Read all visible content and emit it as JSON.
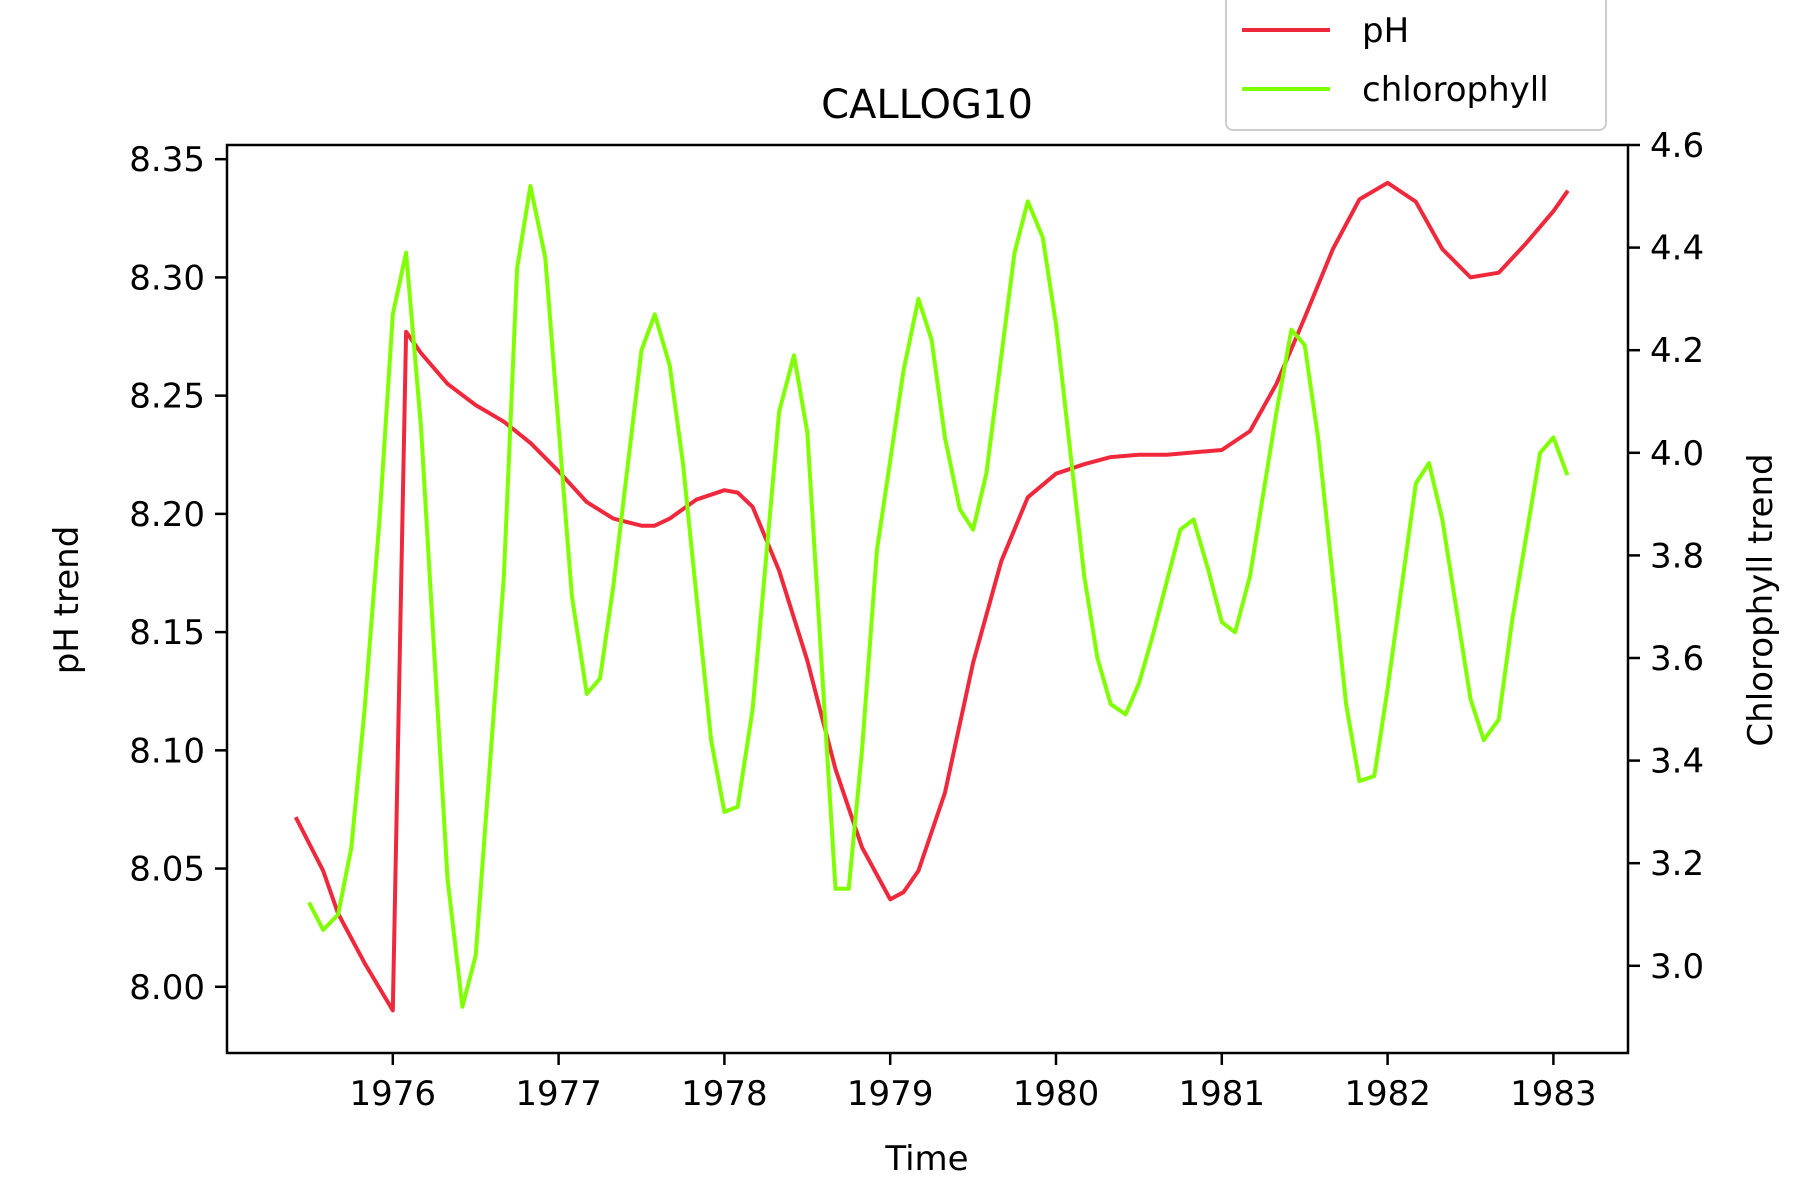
{
  "chart_data": {
    "type": "line",
    "title": "CALLOG10",
    "xlabel": "Time",
    "ylabel_left": "pH trend",
    "ylabel_right": "Chlorophyll trend",
    "xlim": [
      1975.0,
      1983.45
    ],
    "ylim_left": [
      7.972,
      8.356
    ],
    "ylim_right": [
      2.83,
      4.6
    ],
    "x_ticks": [
      1976,
      1977,
      1978,
      1979,
      1980,
      1981,
      1982,
      1983
    ],
    "x_tick_labels": [
      "1976",
      "1977",
      "1978",
      "1979",
      "1980",
      "1981",
      "1982",
      "1983"
    ],
    "y_left_ticks": [
      8.0,
      8.05,
      8.1,
      8.15,
      8.2,
      8.25,
      8.3,
      8.35
    ],
    "y_left_tick_labels": [
      "8.00",
      "8.05",
      "8.10",
      "8.15",
      "8.20",
      "8.25",
      "8.30",
      "8.35"
    ],
    "y_right_ticks": [
      3.0,
      3.2,
      3.4,
      3.6,
      3.8,
      4.0,
      4.2,
      4.4,
      4.6
    ],
    "y_right_tick_labels": [
      "3.0",
      "3.2",
      "3.4",
      "3.6",
      "3.8",
      "4.0",
      "4.2",
      "4.4",
      "4.6"
    ],
    "grid": false,
    "legend_position": "top-right",
    "series": [
      {
        "name": "pH",
        "axis": "left",
        "color": "#f0283c",
        "x": [
          1975.42,
          1975.58,
          1975.67,
          1975.83,
          1976.0,
          1976.08,
          1976.17,
          1976.33,
          1976.5,
          1976.67,
          1976.83,
          1977.0,
          1977.17,
          1977.33,
          1977.5,
          1977.58,
          1977.67,
          1977.83,
          1978.0,
          1978.08,
          1978.17,
          1978.33,
          1978.5,
          1978.67,
          1978.83,
          1979.0,
          1979.08,
          1979.17,
          1979.33,
          1979.5,
          1979.67,
          1979.83,
          1980.0,
          1980.17,
          1980.33,
          1980.5,
          1980.67,
          1980.83,
          1981.0,
          1981.17,
          1981.33,
          1981.5,
          1981.67,
          1981.83,
          1982.0,
          1982.17,
          1982.33,
          1982.5,
          1982.67,
          1982.83,
          1983.0,
          1983.08
        ],
        "y": [
          8.071,
          8.049,
          8.031,
          8.01,
          7.99,
          8.277,
          8.268,
          8.255,
          8.246,
          8.239,
          8.23,
          8.218,
          8.205,
          8.198,
          8.195,
          8.195,
          8.198,
          8.206,
          8.21,
          8.209,
          8.203,
          8.176,
          8.138,
          8.092,
          8.059,
          8.037,
          8.04,
          8.049,
          8.082,
          8.137,
          8.18,
          8.207,
          8.217,
          8.221,
          8.224,
          8.225,
          8.225,
          8.226,
          8.227,
          8.235,
          8.255,
          8.283,
          8.312,
          8.333,
          8.34,
          8.332,
          8.312,
          8.3,
          8.302,
          8.314,
          8.328,
          8.336
        ]
      },
      {
        "name": "chlorophyll",
        "axis": "right",
        "color": "#7fff00",
        "x": [
          1975.5,
          1975.58,
          1975.67,
          1975.75,
          1975.83,
          1975.92,
          1976.0,
          1976.08,
          1976.17,
          1976.33,
          1976.42,
          1976.5,
          1976.67,
          1976.75,
          1976.83,
          1976.92,
          1977.08,
          1977.17,
          1977.25,
          1977.33,
          1977.5,
          1977.58,
          1977.67,
          1977.75,
          1977.92,
          1978.0,
          1978.08,
          1978.17,
          1978.33,
          1978.42,
          1978.5,
          1978.67,
          1978.75,
          1978.83,
          1978.92,
          1979.08,
          1979.17,
          1979.25,
          1979.33,
          1979.42,
          1979.5,
          1979.58,
          1979.75,
          1979.83,
          1979.92,
          1980.0,
          1980.17,
          1980.25,
          1980.33,
          1980.42,
          1980.5,
          1980.58,
          1980.75,
          1980.83,
          1980.92,
          1981.0,
          1981.08,
          1981.17,
          1981.33,
          1981.42,
          1981.5,
          1981.58,
          1981.75,
          1981.83,
          1981.92,
          1982.0,
          1982.17,
          1982.25,
          1982.33,
          1982.5,
          1982.58,
          1982.67,
          1982.75,
          1982.92,
          1983.0,
          1983.08
        ],
        "y": [
          3.12,
          3.07,
          3.1,
          3.23,
          3.5,
          3.87,
          4.27,
          4.39,
          4.05,
          3.17,
          2.92,
          3.02,
          3.76,
          4.36,
          4.52,
          4.38,
          3.72,
          3.53,
          3.56,
          3.74,
          4.2,
          4.27,
          4.17,
          3.98,
          3.44,
          3.3,
          3.31,
          3.5,
          4.08,
          4.19,
          4.04,
          3.15,
          3.15,
          3.42,
          3.81,
          4.16,
          4.3,
          4.22,
          4.03,
          3.89,
          3.85,
          3.96,
          4.39,
          4.49,
          4.42,
          4.25,
          3.76,
          3.6,
          3.51,
          3.49,
          3.55,
          3.64,
          3.85,
          3.87,
          3.77,
          3.67,
          3.65,
          3.76,
          4.08,
          4.24,
          4.21,
          4.03,
          3.51,
          3.36,
          3.37,
          3.54,
          3.94,
          3.98,
          3.87,
          3.52,
          3.44,
          3.48,
          3.67,
          4.0,
          4.03,
          3.96
        ]
      }
    ]
  }
}
